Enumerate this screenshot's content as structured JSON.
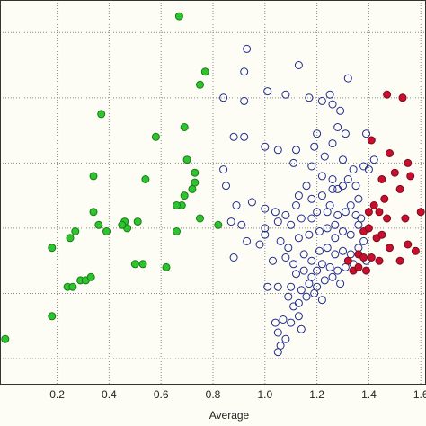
{
  "chart_data": {
    "type": "scatter",
    "title": "",
    "xlabel": "Average",
    "ylabel": "",
    "xlim": [
      -0.02,
      1.62
    ],
    "ylim": [
      -0.08,
      1.1
    ],
    "xticks": [
      {
        "value": 0.2,
        "label": "0.2"
      },
      {
        "value": 0.4,
        "label": "0.4"
      },
      {
        "value": 0.6,
        "label": "0.6"
      },
      {
        "value": 0.8,
        "label": "0.8"
      },
      {
        "value": 1.0,
        "label": "1.0"
      },
      {
        "value": 1.2,
        "label": "1.2"
      },
      {
        "value": 1.4,
        "label": "1.4"
      },
      {
        "value": 1.6,
        "label": "1.6"
      }
    ],
    "ygrid": [
      0.0,
      0.2,
      0.4,
      0.6,
      0.8,
      1.0
    ],
    "grid": true,
    "legend": "none",
    "colors": {
      "background": "#fdfdf5",
      "green_fill": "#2ec42e",
      "green_stroke": "#1a7a1a",
      "blue_stroke": "#1f2a8c",
      "red_fill": "#c8102e",
      "red_stroke": "#7a0a1c",
      "grid": "#8a8a8a",
      "frame": "#333333"
    },
    "series": [
      {
        "style": "green-filled",
        "points": [
          [
            0.0,
            0.06
          ],
          [
            0.18,
            0.13
          ],
          [
            0.18,
            0.34
          ],
          [
            0.25,
            0.37
          ],
          [
            0.27,
            0.39
          ],
          [
            0.24,
            0.22
          ],
          [
            0.26,
            0.22
          ],
          [
            0.29,
            0.24
          ],
          [
            0.31,
            0.24
          ],
          [
            0.33,
            0.25
          ],
          [
            0.34,
            0.56
          ],
          [
            0.37,
            0.75
          ],
          [
            0.36,
            0.41
          ],
          [
            0.39,
            0.39
          ],
          [
            0.34,
            0.45
          ],
          [
            0.46,
            0.42
          ],
          [
            0.47,
            0.4
          ],
          [
            0.51,
            0.42
          ],
          [
            0.45,
            0.41
          ],
          [
            0.5,
            0.29
          ],
          [
            0.53,
            0.29
          ],
          [
            0.54,
            0.55
          ],
          [
            0.58,
            0.68
          ],
          [
            0.62,
            0.28
          ],
          [
            0.67,
            1.05
          ],
          [
            0.69,
            0.71
          ],
          [
            0.7,
            0.61
          ],
          [
            0.73,
            0.54
          ],
          [
            0.73,
            0.57
          ],
          [
            0.72,
            0.52
          ],
          [
            0.68,
            0.47
          ],
          [
            0.69,
            0.5
          ],
          [
            0.66,
            0.39
          ],
          [
            0.66,
            0.47
          ],
          [
            0.75,
            0.84
          ],
          [
            0.77,
            0.88
          ],
          [
            0.75,
            0.43
          ],
          [
            0.82,
            0.41
          ]
        ]
      },
      {
        "style": "blue-open",
        "points": [
          [
            0.93,
            0.95
          ],
          [
            0.92,
            0.88
          ],
          [
            0.84,
            0.8
          ],
          [
            0.92,
            0.79
          ],
          [
            1.01,
            0.82
          ],
          [
            1.13,
            0.9
          ],
          [
            1.08,
            0.81
          ],
          [
            1.17,
            0.8
          ],
          [
            1.22,
            0.79
          ],
          [
            1.32,
            0.86
          ],
          [
            1.26,
            0.78
          ],
          [
            1.29,
            0.76
          ],
          [
            1.25,
            0.81
          ],
          [
            1.2,
            0.69
          ],
          [
            1.31,
            0.69
          ],
          [
            1.39,
            0.69
          ],
          [
            1.42,
            0.61
          ],
          [
            0.88,
            0.68
          ],
          [
            0.92,
            0.68
          ],
          [
            1.0,
            0.65
          ],
          [
            1.05,
            0.64
          ],
          [
            1.12,
            0.64
          ],
          [
            1.19,
            0.65
          ],
          [
            1.23,
            0.62
          ],
          [
            1.26,
            0.66
          ],
          [
            1.28,
            0.71
          ],
          [
            1.3,
            0.61
          ],
          [
            1.34,
            0.58
          ],
          [
            1.38,
            0.59
          ],
          [
            1.4,
            0.58
          ],
          [
            0.84,
            0.58
          ],
          [
            0.85,
            0.53
          ],
          [
            1.11,
            0.6
          ],
          [
            1.18,
            0.59
          ],
          [
            1.22,
            0.56
          ],
          [
            1.26,
            0.55
          ],
          [
            1.28,
            0.52
          ],
          [
            1.32,
            0.55
          ],
          [
            1.35,
            0.53
          ],
          [
            1.36,
            0.49
          ],
          [
            0.89,
            0.47
          ],
          [
            0.95,
            0.48
          ],
          [
            1.0,
            0.46
          ],
          [
            1.04,
            0.45
          ],
          [
            1.08,
            0.44
          ],
          [
            1.12,
            0.47
          ],
          [
            1.18,
            0.49
          ],
          [
            1.22,
            0.5
          ],
          [
            1.26,
            0.52
          ],
          [
            1.3,
            0.53
          ],
          [
            0.87,
            0.42
          ],
          [
            0.91,
            0.41
          ],
          [
            1.0,
            0.4
          ],
          [
            1.05,
            0.42
          ],
          [
            1.1,
            0.41
          ],
          [
            1.14,
            0.43
          ],
          [
            1.2,
            0.45
          ],
          [
            1.25,
            0.47
          ],
          [
            1.33,
            0.47
          ],
          [
            1.37,
            0.43
          ],
          [
            0.93,
            0.36
          ],
          [
            0.98,
            0.35
          ],
          [
            1.0,
            0.38
          ],
          [
            1.06,
            0.36
          ],
          [
            1.09,
            0.34
          ],
          [
            1.13,
            0.37
          ],
          [
            1.17,
            0.38
          ],
          [
            1.21,
            0.39
          ],
          [
            1.24,
            0.4
          ],
          [
            1.27,
            0.41
          ],
          [
            1.3,
            0.39
          ],
          [
            1.33,
            0.38
          ],
          [
            1.36,
            0.41
          ],
          [
            1.38,
            0.36
          ],
          [
            1.27,
            0.37
          ],
          [
            0.88,
            0.31
          ],
          [
            1.03,
            0.3
          ],
          [
            1.08,
            0.31
          ],
          [
            1.11,
            0.29
          ],
          [
            1.15,
            0.32
          ],
          [
            1.18,
            0.3
          ],
          [
            1.21,
            0.33
          ],
          [
            1.24,
            0.34
          ],
          [
            1.27,
            0.32
          ],
          [
            1.3,
            0.33
          ],
          [
            1.33,
            0.32
          ],
          [
            1.36,
            0.34
          ],
          [
            1.39,
            0.3
          ],
          [
            1.12,
            0.26
          ],
          [
            1.15,
            0.27
          ],
          [
            1.18,
            0.25
          ],
          [
            1.2,
            0.27
          ],
          [
            1.22,
            0.29
          ],
          [
            1.25,
            0.28
          ],
          [
            1.28,
            0.27
          ],
          [
            1.31,
            0.28
          ],
          [
            1.34,
            0.29
          ],
          [
            1.1,
            0.22
          ],
          [
            1.14,
            0.21
          ],
          [
            1.17,
            0.23
          ],
          [
            1.2,
            0.22
          ],
          [
            1.23,
            0.24
          ],
          [
            1.26,
            0.25
          ],
          [
            1.29,
            0.23
          ],
          [
            1.01,
            0.22
          ],
          [
            1.05,
            0.22
          ],
          [
            1.09,
            0.19
          ],
          [
            1.11,
            0.16
          ],
          [
            1.13,
            0.17
          ],
          [
            1.16,
            0.19
          ],
          [
            1.19,
            0.2
          ],
          [
            1.22,
            0.18
          ],
          [
            1.07,
            0.12
          ],
          [
            1.1,
            0.11
          ],
          [
            1.13,
            0.13
          ],
          [
            1.14,
            0.09
          ],
          [
            1.04,
            0.11
          ],
          [
            1.05,
            0.08
          ],
          [
            1.06,
            0.04
          ],
          [
            1.08,
            0.06
          ],
          [
            1.05,
            0.02
          ],
          [
            1.13,
            0.5
          ],
          [
            1.16,
            0.53
          ],
          [
            1.28,
            0.44
          ],
          [
            1.31,
            0.45
          ],
          [
            1.35,
            0.44
          ],
          [
            1.18,
            0.43
          ],
          [
            1.24,
            0.45
          ]
        ]
      },
      {
        "style": "red-filled",
        "points": [
          [
            1.47,
            0.81
          ],
          [
            1.53,
            0.8
          ],
          [
            1.41,
            0.67
          ],
          [
            1.48,
            0.63
          ],
          [
            1.55,
            0.6
          ],
          [
            1.45,
            0.55
          ],
          [
            1.5,
            0.57
          ],
          [
            1.52,
            0.52
          ],
          [
            1.46,
            0.49
          ],
          [
            1.56,
            0.56
          ],
          [
            1.4,
            0.45
          ],
          [
            1.42,
            0.47
          ],
          [
            1.44,
            0.45
          ],
          [
            1.47,
            0.43
          ],
          [
            1.54,
            0.43
          ],
          [
            1.6,
            0.45
          ],
          [
            1.38,
            0.39
          ],
          [
            1.4,
            0.4
          ],
          [
            1.43,
            0.37
          ],
          [
            1.45,
            0.38
          ],
          [
            1.48,
            0.34
          ],
          [
            1.55,
            0.35
          ],
          [
            1.58,
            0.33
          ],
          [
            1.36,
            0.32
          ],
          [
            1.38,
            0.31
          ],
          [
            1.41,
            0.31
          ],
          [
            1.44,
            0.3
          ],
          [
            1.52,
            0.3
          ],
          [
            1.32,
            0.3
          ],
          [
            1.34,
            0.27
          ],
          [
            1.36,
            0.28
          ],
          [
            1.39,
            0.27
          ]
        ]
      }
    ]
  }
}
